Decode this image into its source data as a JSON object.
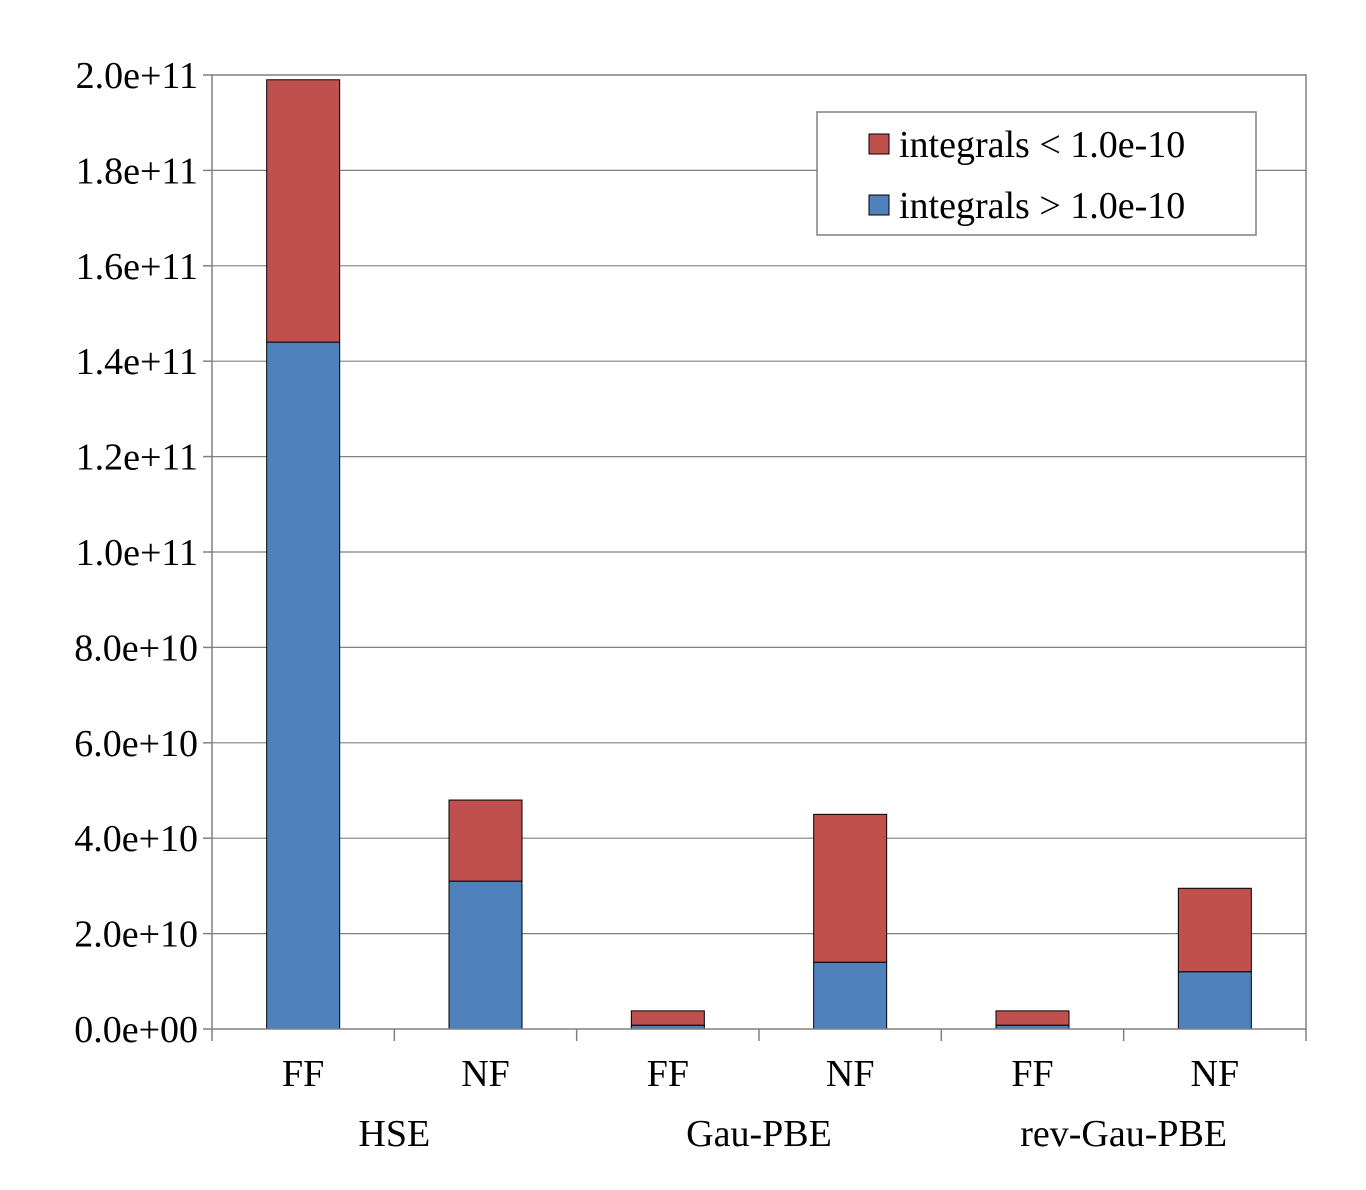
{
  "chart_data": {
    "type": "bar",
    "stacked": true,
    "categories": [
      "FF",
      "NF",
      "FF",
      "NF",
      "FF",
      "NF"
    ],
    "groups": [
      {
        "label": "HSE",
        "categories": [
          "FF",
          "NF"
        ]
      },
      {
        "label": "Gau-PBE",
        "categories": [
          "FF",
          "NF"
        ]
      },
      {
        "label": "rev-Gau-PBE",
        "categories": [
          "FF",
          "NF"
        ]
      }
    ],
    "series": [
      {
        "name": "integrals > 1.0e-10",
        "color": "#4F81BD",
        "values": [
          144000000000.0,
          31000000000.0,
          800000000.0,
          14000000000.0,
          800000000.0,
          12000000000.0
        ]
      },
      {
        "name": "integrals < 1.0e-10",
        "color": "#C0504D",
        "values": [
          55000000000.0,
          17000000000.0,
          3000000000.0,
          31000000000.0,
          3000000000.0,
          17500000000.0
        ]
      }
    ],
    "yticks": [
      "0.0e+00",
      "2.0e+10",
      "4.0e+10",
      "6.0e+10",
      "8.0e+10",
      "1.0e+11",
      "1.2e+11",
      "1.4e+11",
      "1.6e+11",
      "1.8e+11",
      "2.0e+11"
    ],
    "ylim": [
      0,
      200000000000.0
    ],
    "ystep": 20000000000.0,
    "legend": {
      "placement": "top-right",
      "order": [
        "integrals < 1.0e-10",
        "integrals > 1.0e-10"
      ]
    },
    "grid": true,
    "title": "",
    "xlabel": "",
    "ylabel": ""
  }
}
